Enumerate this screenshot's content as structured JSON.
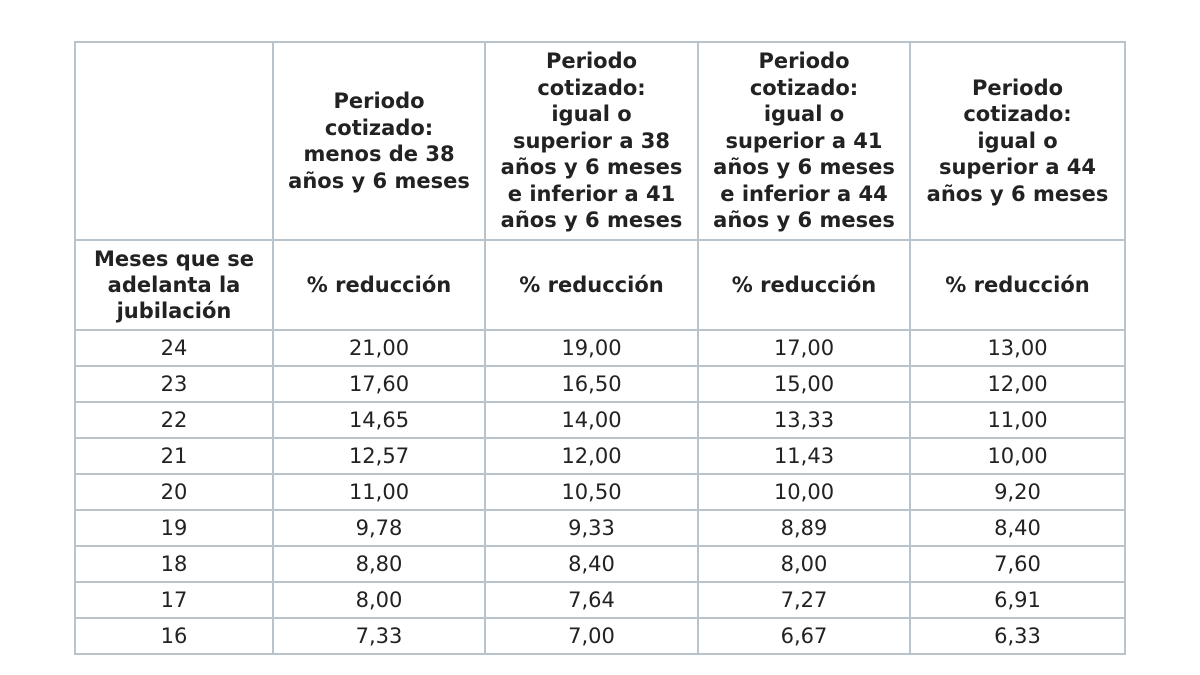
{
  "table": {
    "period_headers": [
      [
        "Periodo",
        "cotizado:",
        "menos de 38",
        "años y 6 meses"
      ],
      [
        "Periodo",
        "cotizado:",
        "igual o",
        "superior a 38",
        "años y 6 meses",
        "e inferior a 41",
        "años y 6 meses"
      ],
      [
        "Periodo",
        "cotizado:",
        "igual o",
        "superior a 41",
        "años y 6 meses",
        "e inferior a 44",
        "años y 6 meses"
      ],
      [
        "Periodo",
        "cotizado:",
        "igual o",
        "superior a 44",
        "años y 6 meses"
      ]
    ],
    "row_header_label": [
      "Meses que se",
      "adelanta la",
      "jubilación"
    ],
    "reduction_label": "% reducción",
    "rows": [
      [
        "24",
        "21,00",
        "19,00",
        "17,00",
        "13,00"
      ],
      [
        "23",
        "17,60",
        "16,50",
        "15,00",
        "12,00"
      ],
      [
        "22",
        "14,65",
        "14,00",
        "13,33",
        "11,00"
      ],
      [
        "21",
        "12,57",
        "12,00",
        "11,43",
        "10,00"
      ],
      [
        "20",
        "11,00",
        "10,50",
        "10,00",
        "9,20"
      ],
      [
        "19",
        "9,78",
        "9,33",
        "8,89",
        "8,40"
      ],
      [
        "18",
        "8,80",
        "8,40",
        "8,00",
        "7,60"
      ],
      [
        "17",
        "8,00",
        "7,64",
        "7,27",
        "6,91"
      ],
      [
        "16",
        "7,33",
        "7,00",
        "6,67",
        "6,33"
      ]
    ]
  }
}
